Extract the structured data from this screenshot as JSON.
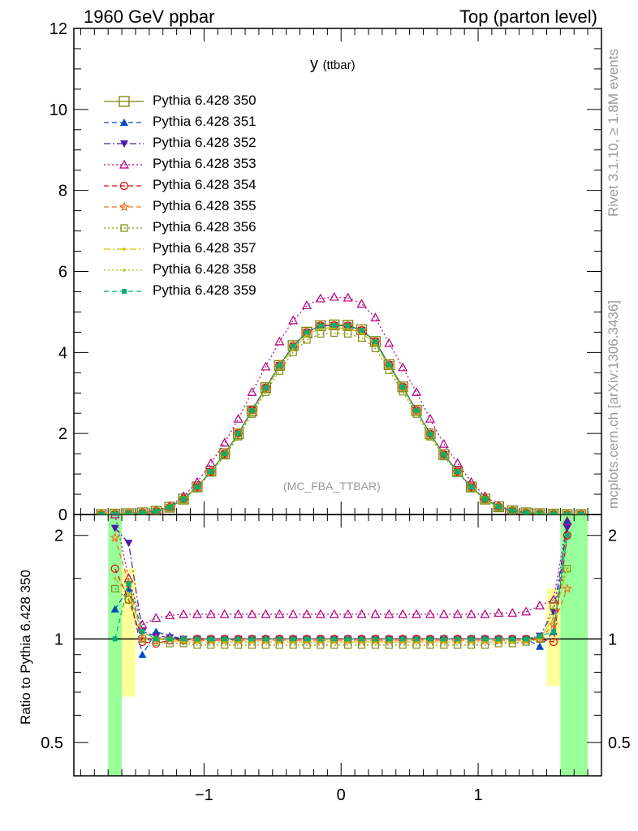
{
  "header": {
    "left": "1960 GeV ppbar",
    "right": "Top (parton level)"
  },
  "side_labels": {
    "rivet": "Rivet 3.1.10, ≥ 1.8M events",
    "mcplots": "mcplots.cern.ch [arXiv:1306.3436]"
  },
  "analysis_tag": "(MC_FBA_TTBAR)",
  "colors": {
    "s350": "#808000",
    "s351": "#004cbf",
    "s352": "#4b1fa5",
    "s353": "#b00080",
    "s354": "#e00000",
    "s355": "#f07020",
    "s356": "#809010",
    "s357": "#d0c000",
    "s358": "#b0c020",
    "s359": "#00b070",
    "band_green": "#99ff99",
    "band_yellow": "#ffff99"
  },
  "chart_data": [
    {
      "type": "line",
      "title": "y (ttbar)",
      "title_main": "y",
      "title_sub": "(ttbar)",
      "xlim": [
        -1.95,
        1.9
      ],
      "ylim": [
        0,
        12
      ],
      "y_ticks": [
        "0",
        "2",
        "4",
        "6",
        "8",
        "10",
        "12"
      ],
      "x_ticks": [
        "−1",
        "0",
        "1"
      ],
      "x": [
        -1.75,
        -1.65,
        -1.55,
        -1.45,
        -1.35,
        -1.25,
        -1.15,
        -1.05,
        -0.95,
        -0.85,
        -0.75,
        -0.65,
        -0.55,
        -0.45,
        -0.35,
        -0.25,
        -0.15,
        -0.05,
        0.05,
        0.15,
        0.25,
        0.35,
        0.45,
        0.55,
        0.65,
        0.75,
        0.85,
        0.95,
        1.05,
        1.15,
        1.25,
        1.35,
        1.45,
        1.55,
        1.65,
        1.75
      ],
      "series": [
        {
          "name": "Pythia 6.428 350",
          "values": [
            0.0,
            0.01,
            0.02,
            0.04,
            0.08,
            0.18,
            0.38,
            0.68,
            1.07,
            1.5,
            1.99,
            2.56,
            3.13,
            3.68,
            4.17,
            4.5,
            4.66,
            4.68,
            4.67,
            4.56,
            4.27,
            3.7,
            3.15,
            2.57,
            1.99,
            1.48,
            1.06,
            0.68,
            0.38,
            0.19,
            0.09,
            0.04,
            0.02,
            0.01,
            0.0,
            0.0
          ]
        },
        {
          "name": "Pythia 6.428 351",
          "values": [
            0.0,
            0.01,
            0.02,
            0.04,
            0.08,
            0.18,
            0.38,
            0.68,
            1.06,
            1.5,
            2.0,
            2.58,
            3.13,
            3.68,
            4.16,
            4.5,
            4.66,
            4.67,
            4.66,
            4.55,
            4.27,
            3.7,
            3.15,
            2.57,
            1.99,
            1.48,
            1.06,
            0.68,
            0.38,
            0.19,
            0.09,
            0.04,
            0.02,
            0.01,
            0.0,
            0.0
          ]
        },
        {
          "name": "Pythia 6.428 352",
          "values": [
            0.0,
            0.01,
            0.02,
            0.04,
            0.08,
            0.18,
            0.38,
            0.68,
            1.06,
            1.5,
            2.0,
            2.58,
            3.13,
            3.68,
            4.16,
            4.5,
            4.66,
            4.67,
            4.66,
            4.55,
            4.27,
            3.7,
            3.15,
            2.57,
            1.99,
            1.48,
            1.06,
            0.68,
            0.38,
            0.19,
            0.09,
            0.04,
            0.02,
            0.01,
            0.0,
            0.0
          ]
        },
        {
          "name": "Pythia 6.428 353",
          "values": [
            0.0,
            0.01,
            0.02,
            0.05,
            0.1,
            0.21,
            0.45,
            0.8,
            1.27,
            1.77,
            2.36,
            3.02,
            3.65,
            4.27,
            4.79,
            5.16,
            5.33,
            5.37,
            5.35,
            5.2,
            4.86,
            4.23,
            3.63,
            3.02,
            2.36,
            1.74,
            1.27,
            0.8,
            0.45,
            0.22,
            0.1,
            0.05,
            0.02,
            0.01,
            0.0,
            0.0
          ]
        },
        {
          "name": "Pythia 6.428 354",
          "values": [
            0.0,
            0.01,
            0.02,
            0.04,
            0.08,
            0.18,
            0.38,
            0.68,
            1.06,
            1.5,
            2.0,
            2.58,
            3.13,
            3.68,
            4.16,
            4.5,
            4.66,
            4.67,
            4.66,
            4.55,
            4.27,
            3.7,
            3.15,
            2.57,
            1.99,
            1.48,
            1.06,
            0.68,
            0.38,
            0.19,
            0.09,
            0.04,
            0.02,
            0.01,
            0.0,
            0.0
          ]
        },
        {
          "name": "Pythia 6.428 355",
          "values": [
            0.0,
            0.01,
            0.02,
            0.04,
            0.08,
            0.18,
            0.38,
            0.68,
            1.06,
            1.5,
            2.0,
            2.58,
            3.13,
            3.68,
            4.16,
            4.5,
            4.66,
            4.67,
            4.66,
            4.55,
            4.27,
            3.7,
            3.15,
            2.57,
            1.99,
            1.48,
            1.06,
            0.68,
            0.38,
            0.19,
            0.09,
            0.04,
            0.02,
            0.01,
            0.0,
            0.0
          ]
        },
        {
          "name": "Pythia 6.428 356",
          "values": [
            0.0,
            0.01,
            0.02,
            0.04,
            0.08,
            0.17,
            0.37,
            0.65,
            1.03,
            1.45,
            1.92,
            2.48,
            3.02,
            3.54,
            4.0,
            4.31,
            4.46,
            4.48,
            4.46,
            4.36,
            4.1,
            3.56,
            3.03,
            2.48,
            1.92,
            1.43,
            1.03,
            0.65,
            0.37,
            0.18,
            0.09,
            0.04,
            0.02,
            0.01,
            0.0,
            0.0
          ]
        },
        {
          "name": "Pythia 6.428 357",
          "values": [
            0.0,
            0.01,
            0.02,
            0.04,
            0.08,
            0.18,
            0.37,
            0.67,
            1.05,
            1.48,
            1.97,
            2.54,
            3.09,
            3.63,
            4.1,
            4.43,
            4.59,
            4.61,
            4.59,
            4.48,
            4.21,
            3.65,
            3.11,
            2.54,
            1.97,
            1.46,
            1.05,
            0.67,
            0.37,
            0.19,
            0.09,
            0.04,
            0.02,
            0.01,
            0.0,
            0.0
          ]
        },
        {
          "name": "Pythia 6.428 358",
          "values": [
            0.0,
            0.01,
            0.02,
            0.04,
            0.08,
            0.18,
            0.37,
            0.67,
            1.05,
            1.48,
            1.97,
            2.54,
            3.09,
            3.63,
            4.1,
            4.43,
            4.59,
            4.61,
            4.59,
            4.48,
            4.21,
            3.65,
            3.11,
            2.54,
            1.97,
            1.46,
            1.05,
            0.67,
            0.37,
            0.19,
            0.09,
            0.04,
            0.02,
            0.01,
            0.0,
            0.0
          ]
        },
        {
          "name": "Pythia 6.428 359",
          "values": [
            0.0,
            0.01,
            0.02,
            0.04,
            0.08,
            0.18,
            0.38,
            0.68,
            1.06,
            1.5,
            2.0,
            2.57,
            3.13,
            3.68,
            4.16,
            4.5,
            4.66,
            4.67,
            4.66,
            4.55,
            4.27,
            3.7,
            3.15,
            2.57,
            1.99,
            1.48,
            1.06,
            0.68,
            0.38,
            0.19,
            0.09,
            0.04,
            0.02,
            0.01,
            0.0,
            0.0
          ]
        }
      ]
    },
    {
      "type": "line",
      "ylabel": "Ratio to Pythia 6.428 350",
      "ylim": [
        0.4,
        2.3
      ],
      "y_scale": "log",
      "y_ticks": [
        "0.5",
        "1",
        "2"
      ],
      "x_ticks": [
        "−1",
        "0",
        "1"
      ],
      "x": [
        -1.65,
        -1.55,
        -1.45,
        -1.35,
        -1.25,
        -1.15,
        -1.05,
        -0.95,
        -0.85,
        -0.75,
        -0.65,
        -0.55,
        -0.45,
        -0.35,
        -0.25,
        -0.15,
        -0.05,
        0.05,
        0.15,
        0.25,
        0.35,
        0.45,
        0.55,
        0.65,
        0.75,
        0.85,
        0.95,
        1.05,
        1.15,
        1.25,
        1.35,
        1.45,
        1.55,
        1.65
      ],
      "bands": [
        {
          "x_range": [
            -1.7,
            -1.6
          ],
          "low": 0.4,
          "high": 2.3,
          "kind": "green"
        },
        {
          "x_range": [
            -1.6,
            -1.5
          ],
          "low": 0.68,
          "high": 1.6,
          "kind": "yellow"
        },
        {
          "x_range": [
            1.5,
            1.6
          ],
          "low": 0.73,
          "high": 1.4,
          "kind": "yellow"
        },
        {
          "x_range": [
            1.6,
            1.8
          ],
          "low": 0.4,
          "high": 2.3,
          "kind": "green"
        }
      ],
      "series": [
        {
          "name": "Pythia 6.428 351",
          "values": [
            1.22,
            1.4,
            0.9,
            1.05,
            1.02,
            1.0,
            1.0,
            0.99,
            0.99,
            1.0,
            1.0,
            1.0,
            1.0,
            1.0,
            1.0,
            1.0,
            1.0,
            1.0,
            1.0,
            1.0,
            1.0,
            1.0,
            1.0,
            1.0,
            1.0,
            1.0,
            1.0,
            1.0,
            1.0,
            1.0,
            1.0,
            0.95,
            1.05,
            2.2
          ]
        },
        {
          "name": "Pythia 6.428 352",
          "values": [
            2.1,
            1.9,
            1.05,
            1.02,
            1.01,
            1.0,
            1.0,
            1.0,
            1.0,
            1.0,
            1.0,
            1.0,
            1.0,
            1.0,
            1.0,
            1.0,
            1.0,
            1.0,
            1.0,
            1.0,
            1.0,
            1.0,
            1.0,
            1.0,
            1.0,
            1.0,
            1.0,
            1.0,
            1.0,
            1.0,
            1.0,
            1.02,
            1.2,
            2.1
          ]
        },
        {
          "name": "Pythia 6.428 353",
          "values": [
            2.3,
            1.5,
            1.1,
            1.15,
            1.17,
            1.18,
            1.18,
            1.18,
            1.18,
            1.18,
            1.18,
            1.18,
            1.18,
            1.18,
            1.18,
            1.18,
            1.18,
            1.18,
            1.18,
            1.18,
            1.18,
            1.18,
            1.18,
            1.18,
            1.18,
            1.18,
            1.18,
            1.18,
            1.19,
            1.19,
            1.2,
            1.25,
            1.3,
            2.2
          ]
        },
        {
          "name": "Pythia 6.428 354",
          "values": [
            1.6,
            1.3,
            0.98,
            0.97,
            0.99,
            0.99,
            1.0,
            1.0,
            1.0,
            1.0,
            1.0,
            1.0,
            1.0,
            1.0,
            1.0,
            1.0,
            1.0,
            1.0,
            1.0,
            1.0,
            1.0,
            1.0,
            1.0,
            1.0,
            1.0,
            1.0,
            1.0,
            1.0,
            1.0,
            1.0,
            1.0,
            1.0,
            0.98,
            2.0
          ]
        },
        {
          "name": "Pythia 6.428 355",
          "values": [
            1.97,
            1.45,
            1.0,
            1.0,
            1.0,
            0.99,
            0.99,
            0.99,
            0.99,
            0.99,
            0.99,
            0.99,
            0.99,
            0.99,
            0.99,
            0.99,
            0.99,
            0.99,
            0.99,
            0.99,
            0.99,
            0.99,
            0.99,
            0.99,
            0.99,
            0.99,
            0.99,
            0.99,
            0.99,
            0.99,
            0.99,
            1.0,
            1.1,
            1.4
          ]
        },
        {
          "name": "Pythia 6.428 356",
          "values": [
            1.4,
            1.3,
            1.0,
            0.98,
            0.97,
            0.97,
            0.96,
            0.96,
            0.96,
            0.96,
            0.96,
            0.96,
            0.96,
            0.96,
            0.96,
            0.96,
            0.96,
            0.96,
            0.96,
            0.96,
            0.96,
            0.96,
            0.96,
            0.96,
            0.96,
            0.96,
            0.96,
            0.96,
            0.97,
            0.97,
            0.98,
            1.0,
            1.25,
            1.6
          ]
        },
        {
          "name": "Pythia 6.428 357",
          "values": [
            1.5,
            1.35,
            1.05,
            1.0,
            0.99,
            0.98,
            0.98,
            0.98,
            0.98,
            0.98,
            0.98,
            0.98,
            0.98,
            0.98,
            0.98,
            0.98,
            0.98,
            0.98,
            0.98,
            0.98,
            0.98,
            0.98,
            0.98,
            0.98,
            0.98,
            0.98,
            0.98,
            0.98,
            0.98,
            0.98,
            0.98,
            1.0,
            1.15,
            1.6
          ]
        },
        {
          "name": "Pythia 6.428 358",
          "values": [
            1.5,
            1.35,
            1.05,
            1.0,
            0.99,
            0.98,
            0.98,
            0.98,
            0.98,
            0.98,
            0.98,
            0.98,
            0.98,
            0.98,
            0.98,
            0.98,
            0.98,
            0.98,
            0.98,
            0.98,
            0.98,
            0.98,
            0.98,
            0.98,
            0.98,
            0.98,
            0.98,
            0.98,
            0.98,
            0.98,
            0.98,
            1.0,
            1.15,
            1.6
          ]
        },
        {
          "name": "Pythia 6.428 359",
          "values": [
            1.0,
            1.45,
            1.05,
            1.0,
            1.0,
            1.0,
            1.0,
            1.0,
            1.0,
            1.0,
            1.0,
            1.0,
            1.0,
            1.0,
            1.0,
            1.0,
            1.0,
            1.0,
            1.0,
            1.0,
            1.0,
            1.0,
            1.0,
            1.0,
            1.0,
            1.0,
            1.0,
            1.0,
            1.0,
            1.0,
            1.0,
            1.02,
            1.05,
            2.0
          ]
        }
      ]
    }
  ]
}
